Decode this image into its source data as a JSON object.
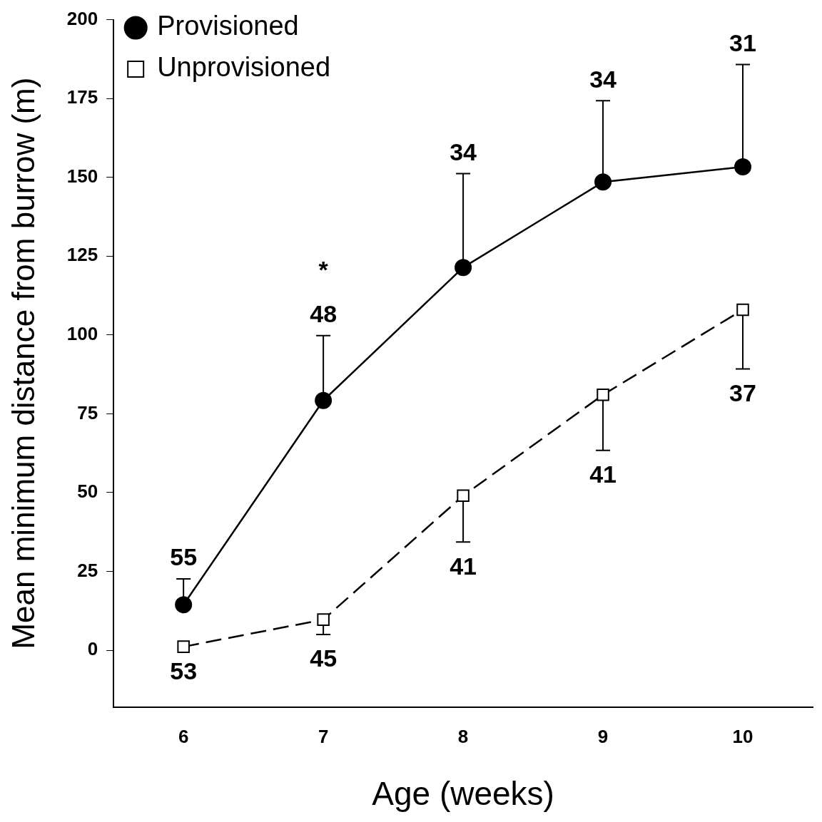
{
  "chart_data": {
    "type": "line",
    "xlabel": "Age (weeks)",
    "ylabel": "Mean minimum distance from burrow (m)",
    "x": [
      6,
      7,
      8,
      9,
      10
    ],
    "series": [
      {
        "name": "Provisioned",
        "color": "#000000",
        "marker": "circle",
        "line_style": "solid",
        "values": [
          14.4,
          79.2,
          121.4,
          148.5,
          153.3
        ],
        "errors": [
          [
            14.4,
            22.6
          ],
          [
            79.2,
            99.8
          ],
          [
            121.4,
            151.2
          ],
          [
            148.5,
            174.3
          ],
          [
            153.3,
            185.8
          ]
        ]
      },
      {
        "name": "Unprovisioned",
        "color": "#000000",
        "marker": "square",
        "line_style": "dashed",
        "values": [
          1.1,
          9.7,
          49,
          81,
          108
        ],
        "errors": [
          null,
          [
            5,
            9.7
          ],
          [
            34.3,
            49
          ],
          [
            63.4,
            81
          ],
          [
            89.2,
            108
          ]
        ]
      }
    ],
    "xlim": [
      5.5,
      10.5
    ],
    "xticks": [
      6,
      7,
      8,
      9,
      10
    ],
    "ylim": [
      -18,
      200
    ],
    "yticks": [
      0,
      25,
      50,
      75,
      100,
      125,
      150,
      175,
      200
    ],
    "grid": false,
    "legend": "top left",
    "annotations": [
      {
        "text": "55",
        "x": 6,
        "y": 22.6
      },
      {
        "text": "48",
        "x": 7,
        "y": 99.8
      },
      {
        "text": "*",
        "x": 7,
        "y": 99.8
      },
      {
        "text": "34",
        "x": 8,
        "y": 151.2
      },
      {
        "text": "34",
        "x": 9,
        "y": 174.3
      },
      {
        "text": "31",
        "x": 10,
        "y": 185.8
      },
      {
        "text": "53",
        "x": 6,
        "y": 1.1
      },
      {
        "text": "45",
        "x": 7,
        "y": 5
      },
      {
        "text": "41",
        "x": 8,
        "y": 34.3
      },
      {
        "text": "41",
        "x": 9,
        "y": 63.4
      },
      {
        "text": "37",
        "x": 10,
        "y": 89.2
      }
    ]
  }
}
